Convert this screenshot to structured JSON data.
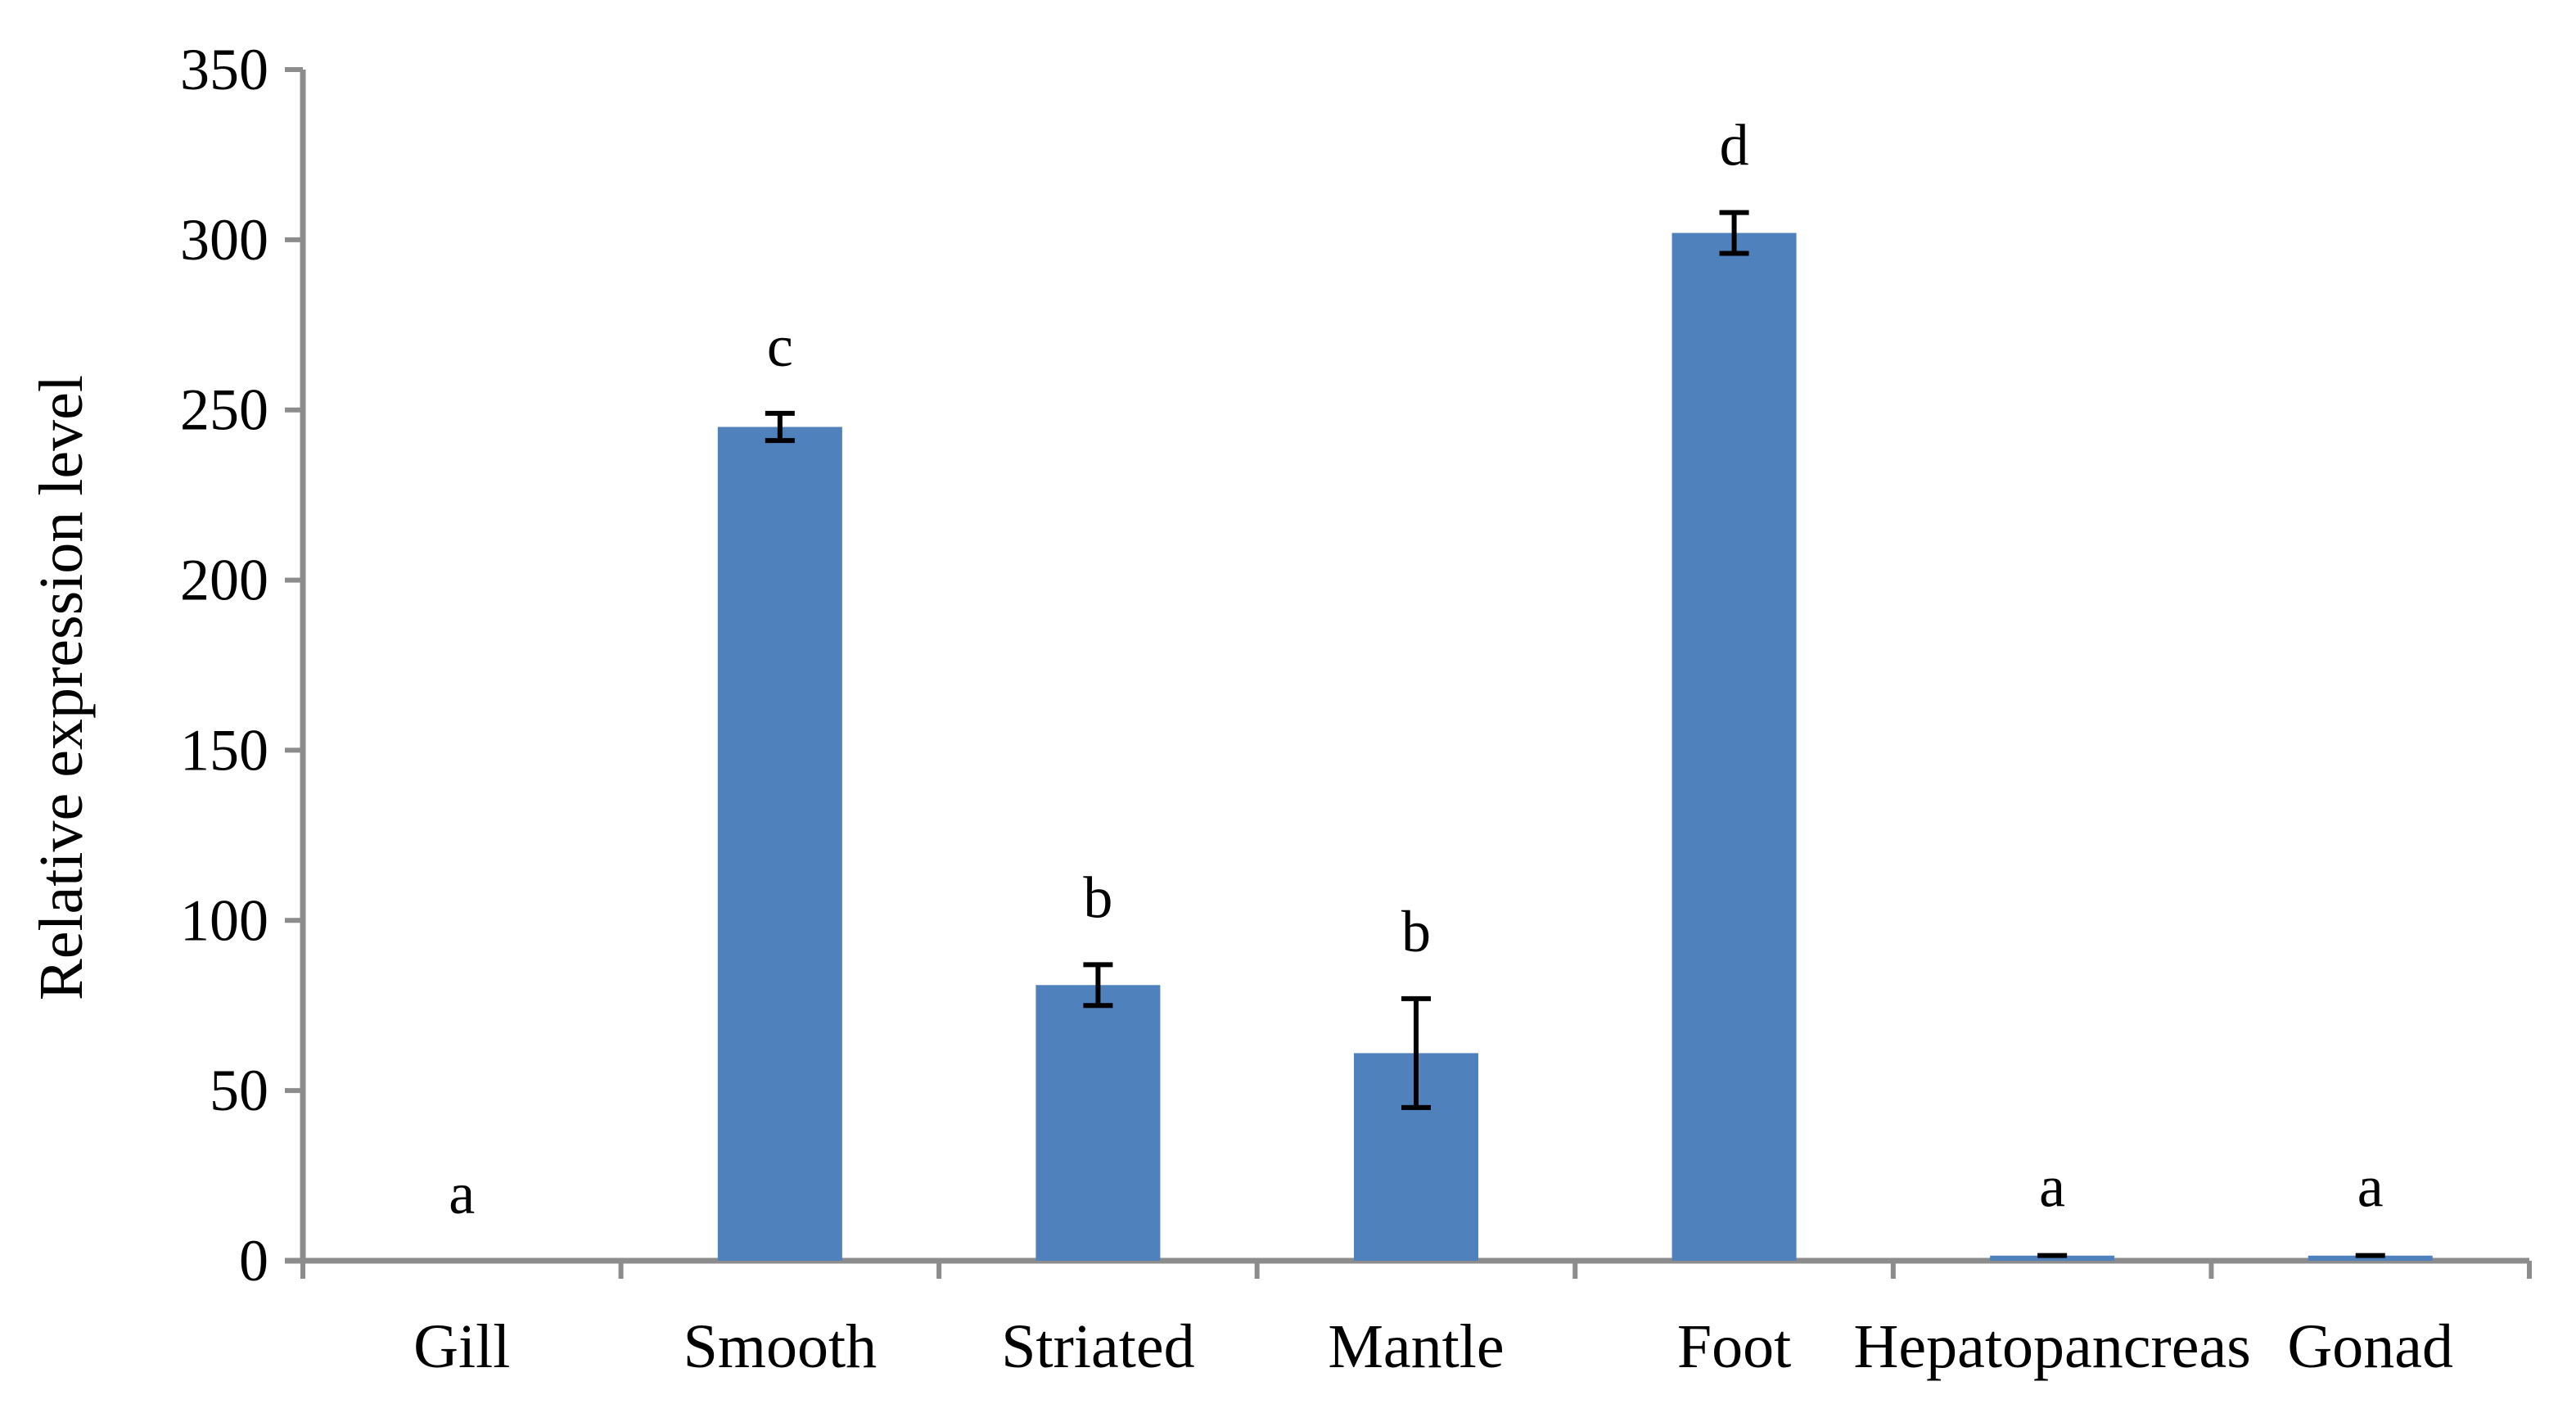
{
  "chart_data": {
    "type": "bar",
    "title": "",
    "xlabel": "",
    "ylabel": "Relative expression level",
    "ylim": [
      0,
      350
    ],
    "yticks": [
      0,
      50,
      100,
      150,
      200,
      250,
      300,
      350
    ],
    "categories": [
      "Gill",
      "Smooth",
      "Striated",
      "Mantle",
      "Foot",
      "Hepatopancreas",
      "Gonad"
    ],
    "values": [
      0,
      245,
      81,
      61,
      302,
      1.5,
      1.5
    ],
    "errors": [
      0,
      4,
      6,
      16,
      6,
      0.5,
      0.5
    ],
    "significance": [
      "a",
      "c",
      "b",
      "b",
      "d",
      "a",
      "a"
    ],
    "bar_color": "#4f81bd",
    "grid": false,
    "legend": "none"
  }
}
